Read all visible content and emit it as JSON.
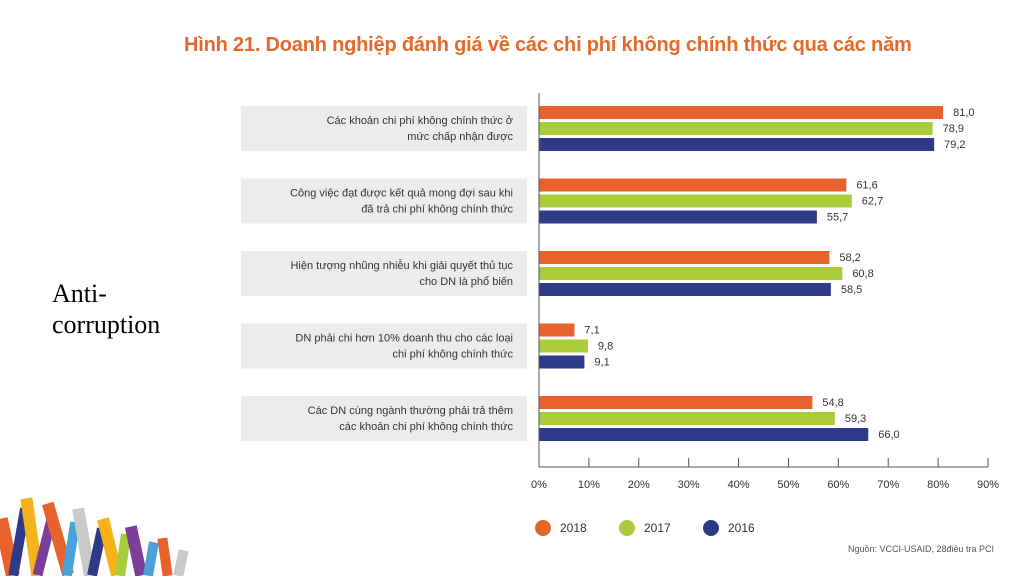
{
  "title": "Hình 21. Doanh nghiệp đánh giá về các chi phí không chính thức qua các năm",
  "side_label": "Anti-corruption",
  "source": "Nguồn: VCCI-USAID, 28điều tra PCI",
  "colors": {
    "title": "#e36a2c",
    "2018": "#e8622e",
    "2017": "#a8cc3a",
    "2016": "#2e3a87",
    "category_bg": "#ececec"
  },
  "chart_data": {
    "type": "bar",
    "orientation": "horizontal",
    "categories": [
      [
        "Các khoản chi phí không chính thức ở",
        "mức chấp nhận được"
      ],
      [
        "Công việc đạt được kết quả mong đợi sau khi",
        "đã trả chi phí không chính thức"
      ],
      [
        "Hiện tượng nhũng nhiễu khi giải quyết thủ tục",
        "cho DN là phổ biến"
      ],
      [
        "DN phải chi hơn 10% doanh thu cho các loại",
        "chi phí không chính thức"
      ],
      [
        "Các DN cùng ngành thường phải trả thêm",
        "các khoản chi phí không chính thức"
      ]
    ],
    "series": [
      {
        "name": "2018",
        "values": [
          81.0,
          61.6,
          58.2,
          7.1,
          54.8
        ],
        "labels": [
          "81,0",
          "61,6",
          "58,2",
          "7,1",
          "54,8"
        ]
      },
      {
        "name": "2017",
        "values": [
          78.9,
          62.7,
          60.8,
          9.8,
          59.3
        ],
        "labels": [
          "78,9",
          "62,7",
          "60,8",
          "9,8",
          "59,3"
        ]
      },
      {
        "name": "2016",
        "values": [
          79.2,
          55.7,
          58.5,
          9.1,
          66.0
        ],
        "labels": [
          "79,2",
          "55,7",
          "58,5",
          "9,1",
          "66,0"
        ]
      }
    ],
    "xlim": [
      0,
      90
    ],
    "xticks": [
      "0%",
      "10%",
      "20%",
      "30%",
      "40%",
      "50%",
      "60%",
      "70%",
      "80%",
      "90%"
    ],
    "legend_position": "bottom"
  }
}
